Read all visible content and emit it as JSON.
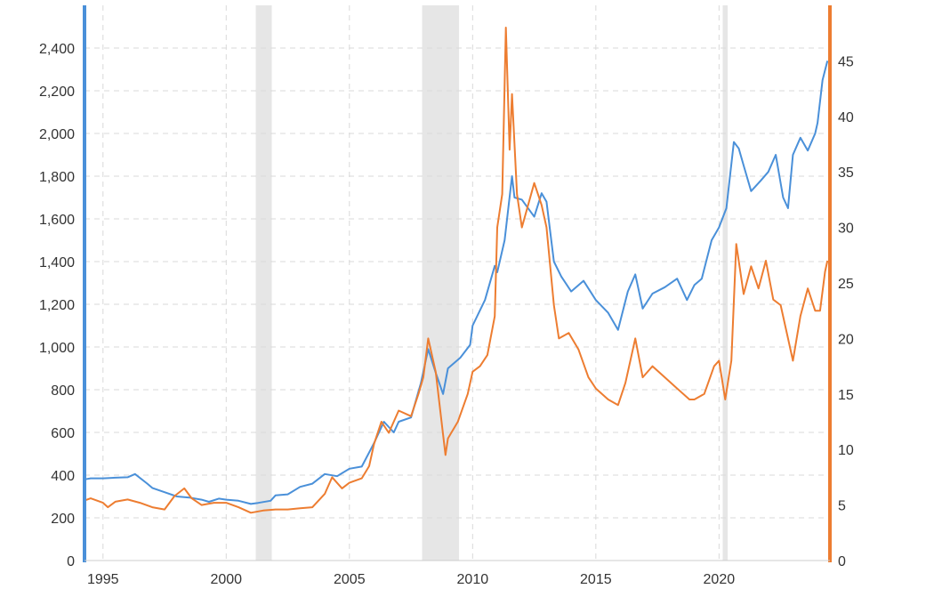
{
  "chart_data": {
    "type": "line",
    "title": "",
    "xlabel": "",
    "ylabel_left": "",
    "ylabel_right": "",
    "x_range": [
      1994.25,
      2024.5
    ],
    "x_ticks": [
      1995,
      2000,
      2005,
      2010,
      2015,
      2020
    ],
    "x_tick_labels": [
      "1995",
      "2000",
      "2005",
      "2010",
      "2015",
      "2020"
    ],
    "y_left": {
      "range": [
        0,
        2600
      ],
      "ticks": [
        0,
        200,
        400,
        600,
        800,
        1000,
        1200,
        1400,
        1600,
        1800,
        2000,
        2200,
        2400
      ],
      "tick_labels": [
        "0",
        "200",
        "400",
        "600",
        "800",
        "1,000",
        "1,200",
        "1,400",
        "1,600",
        "1,800",
        "2,000",
        "2,200",
        "2,400"
      ],
      "axis_color": "#4a90d9"
    },
    "y_right": {
      "range": [
        0,
        50
      ],
      "ticks": [
        0,
        5,
        10,
        15,
        20,
        25,
        30,
        35,
        40,
        45
      ],
      "tick_labels": [
        "0",
        "5",
        "10",
        "15",
        "20",
        "25",
        "30",
        "35",
        "40",
        "45"
      ],
      "axis_color": "#ed7d31"
    },
    "recessions": [
      [
        2001.2,
        2001.85
      ],
      [
        2007.95,
        2009.45
      ],
      [
        2020.15,
        2020.35
      ]
    ],
    "grid": true,
    "legend": "none",
    "series": [
      {
        "axis": "left",
        "color": "#4a90d9",
        "x": [
          1994.25,
          1994.5,
          1995.0,
          1995.5,
          1996.0,
          1996.3,
          1996.8,
          1997.0,
          1997.5,
          1998.0,
          1998.5,
          1999.0,
          1999.3,
          1999.7,
          2000.0,
          2000.5,
          2001.0,
          2001.3,
          2001.8,
          2002.0,
          2002.5,
          2003.0,
          2003.5,
          2004.0,
          2004.5,
          2005.0,
          2005.5,
          2006.0,
          2006.4,
          2006.8,
          2007.0,
          2007.5,
          2007.9,
          2008.2,
          2008.5,
          2008.8,
          2009.0,
          2009.5,
          2009.9,
          2010.0,
          2010.5,
          2010.9,
          2011.0,
          2011.3,
          2011.6,
          2011.7,
          2012.0,
          2012.5,
          2012.8,
          2013.0,
          2013.3,
          2013.6,
          2014.0,
          2014.5,
          2015.0,
          2015.5,
          2015.9,
          2016.3,
          2016.6,
          2016.9,
          2017.3,
          2017.8,
          2018.3,
          2018.7,
          2019.0,
          2019.3,
          2019.7,
          2020.0,
          2020.3,
          2020.6,
          2020.8,
          2021.0,
          2021.3,
          2021.7,
          2022.0,
          2022.3,
          2022.6,
          2022.8,
          2023.0,
          2023.3,
          2023.6,
          2023.9,
          2024.0,
          2024.2,
          2024.4
        ],
        "values": [
          380,
          385,
          385,
          388,
          390,
          405,
          360,
          340,
          320,
          300,
          295,
          285,
          275,
          290,
          285,
          280,
          265,
          270,
          280,
          305,
          310,
          345,
          360,
          405,
          395,
          430,
          440,
          550,
          650,
          600,
          650,
          670,
          830,
          990,
          880,
          780,
          900,
          950,
          1010,
          1100,
          1220,
          1380,
          1350,
          1500,
          1800,
          1700,
          1690,
          1610,
          1720,
          1680,
          1400,
          1330,
          1260,
          1310,
          1220,
          1160,
          1080,
          1260,
          1340,
          1180,
          1250,
          1280,
          1320,
          1220,
          1290,
          1320,
          1500,
          1560,
          1650,
          1960,
          1930,
          1850,
          1730,
          1780,
          1820,
          1900,
          1700,
          1650,
          1900,
          1980,
          1920,
          2000,
          2050,
          2250,
          2340
        ]
      },
      {
        "axis": "right",
        "color": "#ed7d31",
        "x": [
          1994.25,
          1994.5,
          1995.0,
          1995.2,
          1995.5,
          1996.0,
          1996.5,
          1997.0,
          1997.5,
          1997.9,
          1998.3,
          1998.6,
          1999.0,
          1999.5,
          2000.0,
          2000.5,
          2001.0,
          2001.5,
          2002.0,
          2002.5,
          2003.0,
          2003.5,
          2004.0,
          2004.3,
          2004.7,
          2005.0,
          2005.5,
          2005.8,
          2006.0,
          2006.3,
          2006.6,
          2007.0,
          2007.5,
          2007.8,
          2008.0,
          2008.2,
          2008.5,
          2008.9,
          2009.0,
          2009.4,
          2009.8,
          2010.0,
          2010.3,
          2010.6,
          2010.9,
          2011.0,
          2011.2,
          2011.35,
          2011.5,
          2011.6,
          2011.8,
          2012.0,
          2012.5,
          2012.8,
          2013.0,
          2013.3,
          2013.5,
          2013.9,
          2014.3,
          2014.7,
          2015.0,
          2015.5,
          2015.9,
          2016.2,
          2016.6,
          2016.9,
          2017.3,
          2017.8,
          2018.3,
          2018.8,
          2019.0,
          2019.4,
          2019.8,
          2020.0,
          2020.25,
          2020.5,
          2020.7,
          2021.0,
          2021.3,
          2021.6,
          2021.9,
          2022.2,
          2022.5,
          2022.8,
          2023.0,
          2023.3,
          2023.6,
          2023.9,
          2024.1,
          2024.3,
          2024.4
        ],
        "values": [
          5.4,
          5.6,
          5.2,
          4.8,
          5.3,
          5.5,
          5.2,
          4.8,
          4.6,
          5.8,
          6.5,
          5.6,
          5.0,
          5.2,
          5.2,
          4.8,
          4.3,
          4.5,
          4.6,
          4.6,
          4.7,
          4.8,
          6.0,
          7.5,
          6.5,
          7.0,
          7.4,
          8.5,
          10.5,
          12.5,
          11.5,
          13.5,
          13.0,
          15.0,
          16.5,
          20.0,
          17.0,
          9.5,
          11.0,
          12.5,
          15.0,
          17.0,
          17.5,
          18.5,
          22.0,
          30.0,
          33.0,
          48.0,
          37.0,
          42.0,
          33.0,
          30.0,
          34.0,
          32.0,
          30.0,
          23.0,
          20.0,
          20.5,
          19.0,
          16.5,
          15.5,
          14.5,
          14.0,
          16.0,
          20.0,
          16.5,
          17.5,
          16.5,
          15.5,
          14.5,
          14.5,
          15.0,
          17.5,
          18.0,
          14.5,
          18.0,
          28.5,
          24.0,
          26.5,
          24.5,
          27.0,
          23.5,
          23.0,
          20.0,
          18.0,
          22.0,
          24.5,
          22.5,
          22.5,
          26.0,
          27.0
        ]
      }
    ]
  }
}
